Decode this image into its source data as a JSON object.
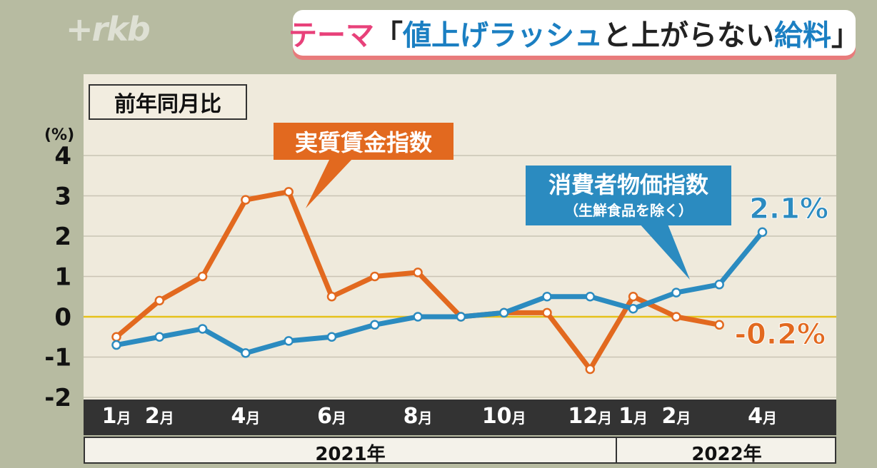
{
  "logo_text": "+rkb",
  "theme": {
    "prefix": "テーマ",
    "bracket_open": "「",
    "part1": "値上げラッシュ",
    "part2": "と上がらない",
    "part3": "給料",
    "bracket_close": "」"
  },
  "colors": {
    "background": "#b7bba1",
    "plot_bg": "#efeadc",
    "wage_series": "#e2691f",
    "cpi_series": "#2b8bc0",
    "zero_line": "#e6c11a",
    "pink": "#e8417a",
    "blue": "#1b7fc2"
  },
  "chart_data": {
    "type": "line",
    "title": "前年同月比",
    "ylabel": "(%)",
    "ylim": [
      -2,
      4
    ],
    "y_ticks": [
      "-2",
      "-1",
      "0",
      "1",
      "2",
      "3",
      "4"
    ],
    "grid": true,
    "x_slots": [
      "2021-01",
      "2021-02",
      "2021-03",
      "2021-04",
      "2021-05",
      "2021-06",
      "2021-07",
      "2021-08",
      "2021-09",
      "2021-10",
      "2021-11",
      "2021-12",
      "2022-01",
      "2022-02",
      "2022-03",
      "2022-04"
    ],
    "x_tick_labels": [
      {
        "slot": "2021-01",
        "num": "1",
        "unit": "月"
      },
      {
        "slot": "2021-02",
        "num": "2",
        "unit": "月"
      },
      {
        "slot": "2021-04",
        "num": "4",
        "unit": "月"
      },
      {
        "slot": "2021-06",
        "num": "6",
        "unit": "月"
      },
      {
        "slot": "2021-08",
        "num": "8",
        "unit": "月"
      },
      {
        "slot": "2021-10",
        "num": "10",
        "unit": "月"
      },
      {
        "slot": "2021-12",
        "num": "12",
        "unit": "月"
      },
      {
        "slot": "2022-01",
        "num": "1",
        "unit": "月"
      },
      {
        "slot": "2022-02",
        "num": "2",
        "unit": "月"
      },
      {
        "slot": "2022-04",
        "num": "4",
        "unit": "月"
      }
    ],
    "year_labels": [
      "2021年",
      "2022年"
    ],
    "series": [
      {
        "name": "実質賃金指数",
        "values": [
          -0.5,
          0.4,
          1.0,
          2.9,
          3.1,
          0.5,
          1.0,
          1.1,
          0.0,
          0.1,
          0.1,
          -1.3,
          0.5,
          0.0,
          -0.2,
          null
        ],
        "last_label": "-0.2%"
      },
      {
        "name": "消費者物価指数",
        "subtitle": "（生鮮食品を除く）",
        "values": [
          -0.7,
          -0.5,
          -0.3,
          -0.9,
          -0.6,
          -0.5,
          -0.2,
          0.0,
          0.0,
          0.1,
          0.5,
          0.5,
          0.2,
          0.6,
          0.8,
          2.1
        ],
        "last_label": "2.1%"
      }
    ]
  }
}
